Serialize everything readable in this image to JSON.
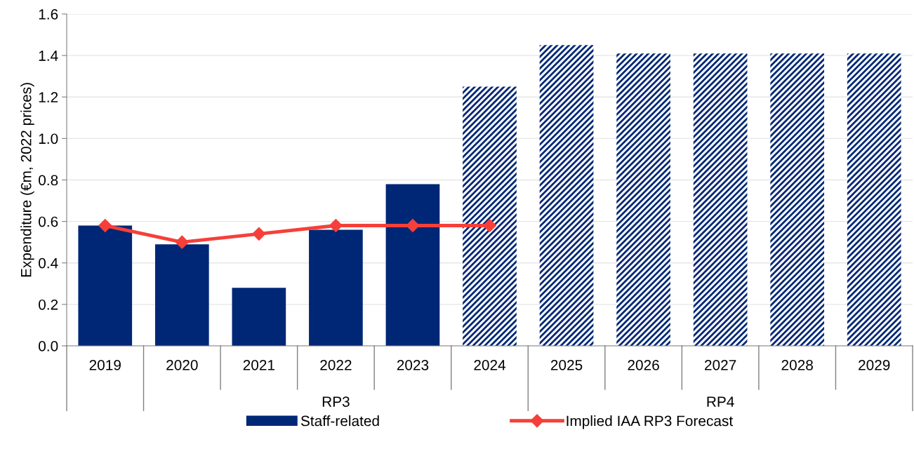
{
  "chart_data": {
    "type": "bar",
    "ylabel": "Expenditure (€m, 2022 prices)",
    "categories": [
      "2019",
      "2020",
      "2021",
      "2022",
      "2023",
      "2024",
      "2025",
      "2026",
      "2027",
      "2028",
      "2029"
    ],
    "annotations": [
      "RP3",
      "RP4"
    ],
    "series": [
      {
        "name": "Staff-related",
        "color": "#002776",
        "values": [
          0.58,
          0.49,
          0.28,
          0.56,
          0.78,
          null,
          null,
          null,
          null,
          null,
          null
        ]
      },
      {
        "color": "#002776",
        "values": [
          null,
          null,
          null,
          null,
          null,
          1.25,
          1.45,
          1.41,
          1.41,
          1.41,
          1.41
        ]
      },
      {
        "name": "Implied IAA RP3 Forecast",
        "type": "line",
        "color": "#f5403a",
        "marker": "diamond",
        "values": [
          0.58,
          0.5,
          0.54,
          0.58,
          0.58,
          0.58,
          null,
          null,
          null,
          null,
          null
        ]
      }
    ],
    "ylim": [
      0,
      1.6
    ],
    "yticks": [
      {
        "value": 0,
        "label": "0.0"
      },
      {
        "value": 0.2,
        "label": "0.2"
      },
      {
        "value": 0.4,
        "label": "0.4"
      },
      {
        "value": 0.6,
        "label": "0.6"
      },
      {
        "value": 0.8,
        "label": "0.8"
      },
      {
        "value": 1.0,
        "label": "1.0"
      },
      {
        "value": 1.2,
        "label": "1.2"
      },
      {
        "value": 1.4,
        "label": "1.4"
      },
      {
        "value": 1.6,
        "label": "1.6"
      }
    ],
    "grid": "y",
    "legend": "bottom"
  }
}
